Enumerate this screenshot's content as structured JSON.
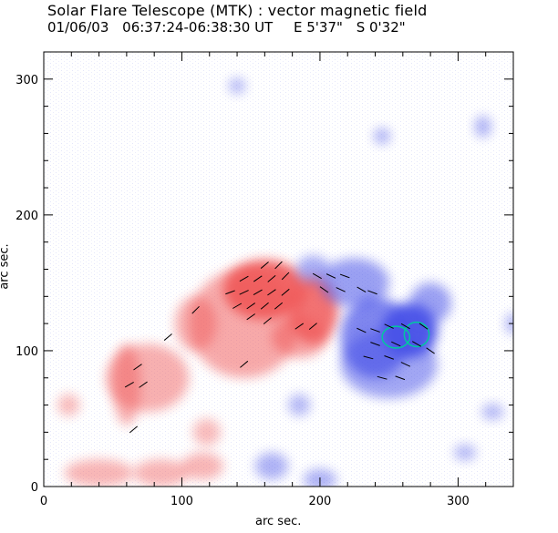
{
  "header": {
    "title": "Solar Flare Telescope (MTK) : vector magnetic field",
    "date": "01/06/03",
    "time_range": "06:37:24-06:38:30 UT",
    "east": "E 5'37\"",
    "south": "S 0'32\""
  },
  "chart_data": {
    "type": "heatmap",
    "title": "Solar Flare Telescope (MTK) : vector magnetic field",
    "xlabel": "arc sec.",
    "ylabel": "arc sec.",
    "xlim": [
      0,
      340
    ],
    "ylim": [
      0,
      320
    ],
    "xticks": [
      0,
      100,
      200,
      300
    ],
    "yticks": [
      0,
      100,
      200,
      300
    ],
    "colors": {
      "positive": "#f05a5a",
      "negative": "#4a52e8",
      "contour": "#00c8a0",
      "vector": "#000000"
    },
    "positive_regions": [
      {
        "x": 160,
        "y": 145,
        "rx": 30,
        "ry": 22,
        "level": 0.9
      },
      {
        "x": 195,
        "y": 130,
        "rx": 18,
        "ry": 25,
        "level": 0.8
      },
      {
        "x": 145,
        "y": 120,
        "rx": 40,
        "ry": 40,
        "level": 0.35
      },
      {
        "x": 110,
        "y": 120,
        "rx": 15,
        "ry": 20,
        "level": 0.3
      },
      {
        "x": 75,
        "y": 80,
        "rx": 30,
        "ry": 25,
        "level": 0.3
      },
      {
        "x": 60,
        "y": 75,
        "rx": 10,
        "ry": 30,
        "level": 0.3
      },
      {
        "x": 40,
        "y": 10,
        "rx": 25,
        "ry": 10,
        "level": 0.25
      },
      {
        "x": 85,
        "y": 10,
        "rx": 20,
        "ry": 10,
        "level": 0.25
      },
      {
        "x": 115,
        "y": 15,
        "rx": 15,
        "ry": 10,
        "level": 0.25
      },
      {
        "x": 185,
        "y": 110,
        "rx": 20,
        "ry": 15,
        "level": 0.4
      },
      {
        "x": 18,
        "y": 60,
        "rx": 8,
        "ry": 8,
        "level": 0.2
      },
      {
        "x": 118,
        "y": 40,
        "rx": 10,
        "ry": 10,
        "level": 0.2
      }
    ],
    "negative_regions": [
      {
        "x": 265,
        "y": 115,
        "rx": 20,
        "ry": 20,
        "level": 0.95
      },
      {
        "x": 240,
        "y": 110,
        "rx": 25,
        "ry": 30,
        "level": 0.6
      },
      {
        "x": 225,
        "y": 150,
        "rx": 25,
        "ry": 18,
        "level": 0.4
      },
      {
        "x": 250,
        "y": 90,
        "rx": 35,
        "ry": 25,
        "level": 0.35
      },
      {
        "x": 280,
        "y": 135,
        "rx": 15,
        "ry": 15,
        "level": 0.4
      },
      {
        "x": 195,
        "y": 160,
        "rx": 12,
        "ry": 10,
        "level": 0.3
      },
      {
        "x": 165,
        "y": 15,
        "rx": 12,
        "ry": 10,
        "level": 0.25
      },
      {
        "x": 200,
        "y": 5,
        "rx": 12,
        "ry": 8,
        "level": 0.25
      },
      {
        "x": 245,
        "y": 258,
        "rx": 6,
        "ry": 6,
        "level": 0.25
      },
      {
        "x": 318,
        "y": 265,
        "rx": 6,
        "ry": 8,
        "level": 0.25
      },
      {
        "x": 140,
        "y": 295,
        "rx": 6,
        "ry": 6,
        "level": 0.2
      },
      {
        "x": 325,
        "y": 55,
        "rx": 8,
        "ry": 6,
        "level": 0.2
      },
      {
        "x": 305,
        "y": 25,
        "rx": 8,
        "ry": 6,
        "level": 0.2
      },
      {
        "x": 185,
        "y": 60,
        "rx": 8,
        "ry": 8,
        "level": 0.2
      },
      {
        "x": 340,
        "y": 120,
        "rx": 6,
        "ry": 8,
        "level": 0.2
      }
    ],
    "contour": [
      {
        "x": 255,
        "y": 110,
        "rx": 10,
        "ry": 8
      },
      {
        "x": 270,
        "y": 112,
        "rx": 9,
        "ry": 9
      }
    ],
    "vectors": [
      {
        "x": 135,
        "y": 143,
        "angle": 20
      },
      {
        "x": 145,
        "y": 143,
        "angle": 25
      },
      {
        "x": 155,
        "y": 143,
        "angle": 30
      },
      {
        "x": 165,
        "y": 143,
        "angle": 35
      },
      {
        "x": 175,
        "y": 143,
        "angle": 40
      },
      {
        "x": 140,
        "y": 133,
        "angle": 30
      },
      {
        "x": 150,
        "y": 133,
        "angle": 35
      },
      {
        "x": 160,
        "y": 133,
        "angle": 40
      },
      {
        "x": 170,
        "y": 133,
        "angle": 40
      },
      {
        "x": 145,
        "y": 153,
        "angle": 30
      },
      {
        "x": 155,
        "y": 153,
        "angle": 35
      },
      {
        "x": 165,
        "y": 153,
        "angle": 40
      },
      {
        "x": 175,
        "y": 155,
        "angle": 45
      },
      {
        "x": 160,
        "y": 163,
        "angle": 40
      },
      {
        "x": 170,
        "y": 163,
        "angle": 45
      },
      {
        "x": 150,
        "y": 125,
        "angle": 35
      },
      {
        "x": 162,
        "y": 122,
        "angle": 40
      },
      {
        "x": 198,
        "y": 155,
        "angle": -30
      },
      {
        "x": 208,
        "y": 155,
        "angle": -25
      },
      {
        "x": 218,
        "y": 155,
        "angle": -20
      },
      {
        "x": 203,
        "y": 145,
        "angle": -35
      },
      {
        "x": 215,
        "y": 145,
        "angle": -25
      },
      {
        "x": 230,
        "y": 145,
        "angle": -30
      },
      {
        "x": 195,
        "y": 118,
        "angle": 40
      },
      {
        "x": 185,
        "y": 118,
        "angle": 35
      },
      {
        "x": 230,
        "y": 115,
        "angle": -25
      },
      {
        "x": 240,
        "y": 115,
        "angle": -20
      },
      {
        "x": 250,
        "y": 118,
        "angle": -25
      },
      {
        "x": 262,
        "y": 118,
        "angle": -30
      },
      {
        "x": 275,
        "y": 118,
        "angle": -35
      },
      {
        "x": 240,
        "y": 105,
        "angle": -20
      },
      {
        "x": 255,
        "y": 105,
        "angle": -25
      },
      {
        "x": 270,
        "y": 105,
        "angle": -30
      },
      {
        "x": 250,
        "y": 95,
        "angle": -20
      },
      {
        "x": 262,
        "y": 90,
        "angle": -25
      },
      {
        "x": 235,
        "y": 95,
        "angle": -15
      },
      {
        "x": 280,
        "y": 100,
        "angle": -35
      },
      {
        "x": 258,
        "y": 80,
        "angle": -20
      },
      {
        "x": 245,
        "y": 80,
        "angle": -15
      },
      {
        "x": 90,
        "y": 110,
        "angle": 40
      },
      {
        "x": 68,
        "y": 88,
        "angle": 35
      },
      {
        "x": 62,
        "y": 75,
        "angle": 30
      },
      {
        "x": 72,
        "y": 75,
        "angle": 35
      },
      {
        "x": 65,
        "y": 42,
        "angle": 40
      },
      {
        "x": 110,
        "y": 130,
        "angle": 45
      },
      {
        "x": 145,
        "y": 90,
        "angle": 40
      },
      {
        "x": 238,
        "y": 143,
        "angle": -20
      }
    ]
  }
}
